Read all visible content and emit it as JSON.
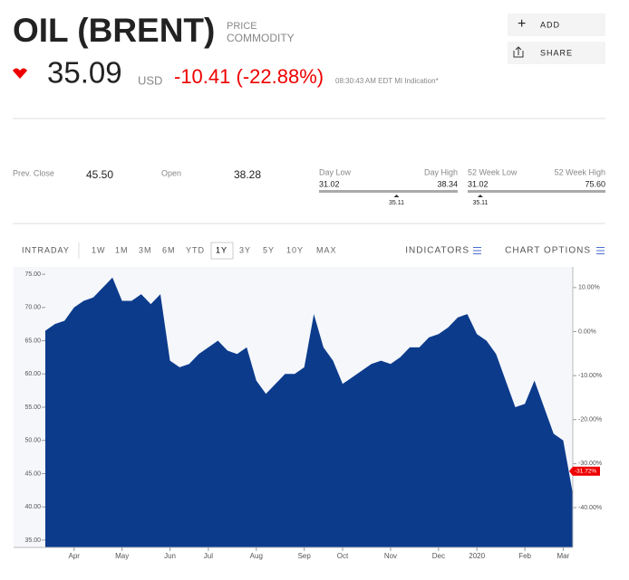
{
  "header": {
    "title": "OIL (BRENT)",
    "kind_top": "PRICE",
    "kind_bottom": "COMMODITY",
    "price": "35.09",
    "currency": "USD",
    "change": "-10.41 (-22.88%)",
    "time": "08:30:43 AM EDT MI Indication*"
  },
  "actions": [
    "ADD",
    "SHARE"
  ],
  "stats": {
    "prev_close_label": "Prev. Close",
    "prev_close": "45.50",
    "open_label": "Open",
    "open": "38.28",
    "day_range": {
      "low_label": "Day Low",
      "high_label": "Day High",
      "low": "31.02",
      "high": "38.34",
      "current": "35.11"
    },
    "week52_range": {
      "low_label": "52 Week Low",
      "high_label": "52 Week High",
      "low": "31.02",
      "high": "75.60",
      "current": "35.11"
    }
  },
  "toolbar": {
    "intraday": "INTRADAY",
    "ranges": [
      "1W",
      "1M",
      "3M",
      "6M",
      "YTD",
      "1Y",
      "3Y",
      "5Y",
      "10Y",
      "MAX"
    ],
    "selected": "1Y",
    "indicators": "INDICATORS",
    "chart_options": "CHART OPTIONS"
  },
  "chart_data": {
    "type": "area",
    "color": "#0c3b8c",
    "categories": [
      null,
      null,
      null,
      "Apr",
      null,
      null,
      null,
      null,
      "May",
      null,
      null,
      null,
      null,
      "Jun",
      null,
      null,
      null,
      "Jul",
      null,
      null,
      null,
      null,
      "Aug",
      null,
      null,
      null,
      null,
      "Sep",
      null,
      null,
      null,
      "Oct",
      null,
      null,
      null,
      null,
      "Nov",
      null,
      null,
      null,
      null,
      "Dec",
      null,
      null,
      null,
      "2020",
      null,
      null,
      null,
      null,
      "Feb",
      null,
      null,
      null,
      "Mar",
      null
    ],
    "series": [
      {
        "name": "OIL (BRENT)",
        "values": [
          66.5,
          67.5,
          68,
          70,
          71,
          71.5,
          73,
          74.5,
          71,
          71,
          72,
          70.5,
          72,
          62,
          61,
          61.5,
          63,
          64,
          65,
          63.5,
          63,
          64,
          59,
          57,
          58.5,
          60,
          60,
          61,
          69,
          64,
          62,
          58.5,
          59.5,
          60.5,
          61.5,
          62,
          61.5,
          62.5,
          64,
          64,
          65.5,
          66,
          67,
          68.5,
          69,
          66,
          65,
          63,
          59,
          55,
          55.5,
          59,
          55,
          51,
          50,
          42
        ]
      }
    ],
    "ylim": [
      33.9,
      76.1
    ],
    "yticks": [
      {
        "value": 35,
        "label": "35.00"
      },
      {
        "value": 40,
        "label": "40.00"
      },
      {
        "value": 45,
        "label": "45.00"
      },
      {
        "value": 50,
        "label": "50.00"
      },
      {
        "value": 55,
        "label": "55.00"
      },
      {
        "value": 60,
        "label": "60.00"
      },
      {
        "value": 65,
        "label": "65.00"
      },
      {
        "value": 70,
        "label": "70.00"
      },
      {
        "value": 75,
        "label": "75.00"
      }
    ],
    "y2lim": [
      -49.05,
      14.7
    ],
    "y2ticks": [
      {
        "value": 10,
        "label": "10.00%"
      },
      {
        "value": 0,
        "label": "0.00%"
      },
      {
        "value": -10,
        "label": "-10.00%"
      },
      {
        "value": -20,
        "label": "-20.00%"
      },
      {
        "value": -30,
        "label": "-30.00%"
      },
      {
        "value": -40,
        "label": "-40.00%"
      }
    ],
    "current_change": {
      "value": -31.72,
      "label": "-31.72%"
    },
    "grid": false
  }
}
